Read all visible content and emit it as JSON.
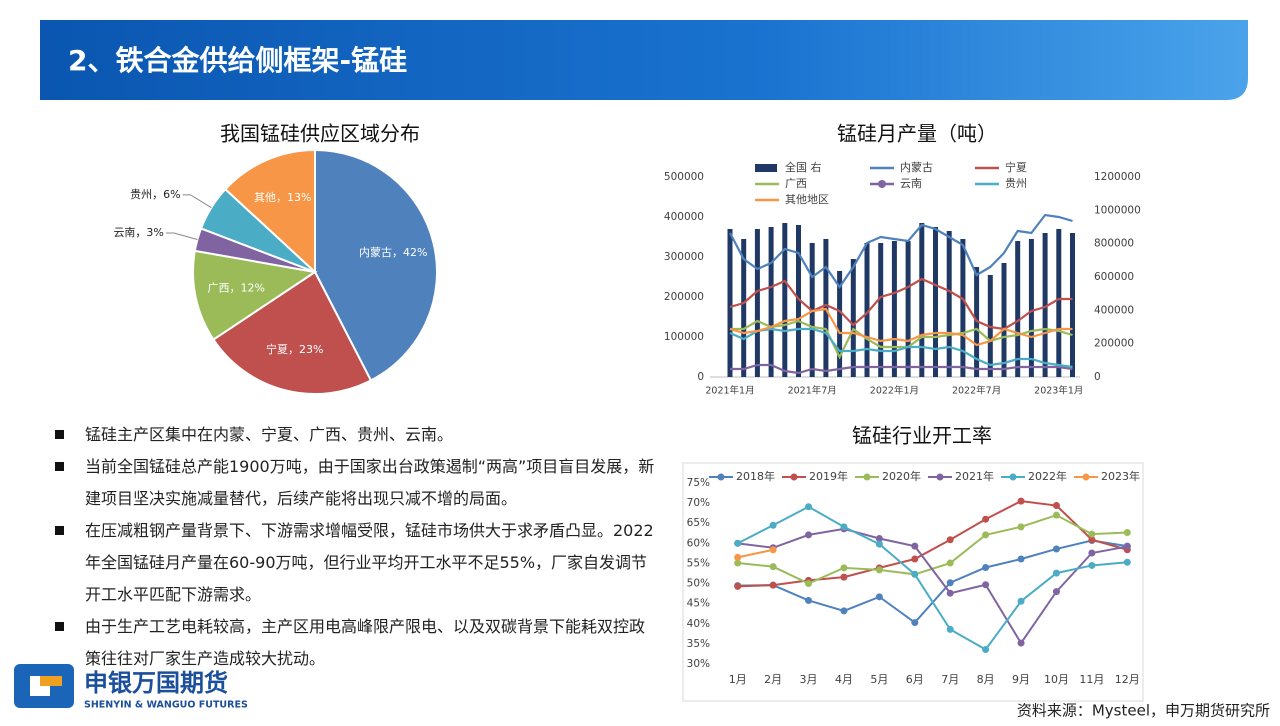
{
  "slide": {
    "title": "2、铁合金供给侧框架-锰硅",
    "bullets": [
      "锰硅主产区集中在内蒙、宁夏、广西、贵州、云南。",
      "当前全国锰硅总产能1900万吨，由于国家出台政策遏制“两高”项目盲目发展，新建项目坚决实施减量替代，后续产能将出现只减不增的局面。",
      "在压减粗钢产量背景下、下游需求增幅受限，锰硅市场供大于求矛盾凸显。2022年全国锰硅月产量在60-90万吨，但行业平均开工水平不足55%，厂家自发调节开工水平匹配下游需求。",
      "由于生产工艺电耗较高，主产区用电高峰限产限电、以及双碳背景下能耗双控政策往往对厂家生产造成较大扰动。"
    ],
    "logo_name": "申银万国期货",
    "logo_english": "SHENYIN & WANGUO FUTURES",
    "source": "资料来源：Mysteel，申万期货研究所"
  },
  "chart_data": [
    {
      "type": "pie",
      "title": "我国锰硅供应区域分布",
      "categories": [
        "内蒙古",
        "宁夏",
        "广西",
        "云南",
        "贵州",
        "其他"
      ],
      "values": [
        42,
        23,
        12,
        3,
        6,
        13
      ],
      "value_labels": [
        "内蒙古，42%",
        "宁夏，23%",
        "广西，12%",
        "云南，3%",
        "贵州，6%",
        "其他，13%"
      ],
      "colors": [
        "#4f81bd",
        "#c0504d",
        "#9bbb59",
        "#8064a2",
        "#4bacc6",
        "#f79646"
      ]
    },
    {
      "type": "bar-line",
      "title": "锰硅月产量（吨）",
      "categories": [
        "2021年1月",
        null,
        null,
        null,
        null,
        null,
        "2021年7月",
        null,
        null,
        null,
        null,
        null,
        "2022年1月",
        null,
        null,
        null,
        null,
        null,
        "2022年7月",
        null,
        null,
        null,
        null,
        null,
        "2023年1月",
        null
      ],
      "ylim": [
        0,
        500000
      ],
      "yticks": [
        0,
        100000,
        200000,
        300000,
        400000,
        500000
      ],
      "y2lim": [
        0,
        1200000
      ],
      "y2ticks": [
        0,
        200000,
        400000,
        600000,
        800000,
        1000000,
        1200000
      ],
      "grid": false,
      "series": [
        {
          "name": "全国 右",
          "type": "bar",
          "axis": "y2",
          "color": "#1f3864",
          "values": [
            888000,
            828000,
            888000,
            900000,
            924000,
            912000,
            804000,
            828000,
            636000,
            708000,
            804000,
            804000,
            816000,
            816000,
            924000,
            900000,
            876000,
            828000,
            660000,
            612000,
            684000,
            816000,
            828000,
            864000,
            888000,
            864000
          ]
        },
        {
          "name": "内蒙古",
          "type": "line",
          "color": "#4f81bd",
          "values": [
            360000,
            295000,
            270000,
            285000,
            320000,
            310000,
            250000,
            275000,
            225000,
            275000,
            335000,
            350000,
            345000,
            340000,
            380000,
            370000,
            350000,
            330000,
            255000,
            275000,
            310000,
            365000,
            360000,
            405000,
            400000,
            390000
          ]
        },
        {
          "name": "宁夏",
          "type": "line",
          "color": "#c0504d",
          "values": [
            175000,
            185000,
            215000,
            225000,
            240000,
            195000,
            165000,
            180000,
            165000,
            130000,
            160000,
            200000,
            210000,
            225000,
            245000,
            230000,
            215000,
            195000,
            140000,
            125000,
            120000,
            140000,
            165000,
            175000,
            195000,
            195000
          ]
        },
        {
          "name": "广西",
          "type": "line",
          "color": "#9bbb59",
          "values": [
            120000,
            120000,
            140000,
            125000,
            130000,
            140000,
            125000,
            120000,
            50000,
            120000,
            95000,
            75000,
            75000,
            75000,
            100000,
            100000,
            105000,
            110000,
            120000,
            90000,
            100000,
            105000,
            115000,
            120000,
            115000,
            105000
          ]
        },
        {
          "name": "云南",
          "type": "line",
          "color": "#8064a2",
          "values": [
            20000,
            20000,
            30000,
            30000,
            15000,
            10000,
            20000,
            15000,
            20000,
            25000,
            25000,
            25000,
            25000,
            25000,
            25000,
            25000,
            25000,
            25000,
            20000,
            20000,
            20000,
            25000,
            25000,
            25000,
            25000,
            20000
          ]
        },
        {
          "name": "贵州",
          "type": "line",
          "color": "#4bacc6",
          "values": [
            110000,
            95000,
            115000,
            120000,
            115000,
            120000,
            120000,
            110000,
            65000,
            65000,
            70000,
            65000,
            65000,
            75000,
            75000,
            70000,
            75000,
            65000,
            45000,
            30000,
            35000,
            45000,
            45000,
            35000,
            30000,
            25000
          ]
        },
        {
          "name": "其他地区",
          "type": "line",
          "color": "#f79646",
          "values": [
            120000,
            110000,
            115000,
            125000,
            140000,
            145000,
            165000,
            170000,
            110000,
            110000,
            100000,
            90000,
            95000,
            90000,
            105000,
            110000,
            110000,
            105000,
            80000,
            90000,
            120000,
            110000,
            100000,
            110000,
            120000,
            120000
          ]
        }
      ]
    },
    {
      "type": "line",
      "title": "锰硅行业开工率",
      "categories": [
        "1月",
        "2月",
        "3月",
        "4月",
        "5月",
        "6月",
        "7月",
        "8月",
        "9月",
        "10月",
        "11月",
        "12月"
      ],
      "ylim": [
        30,
        75
      ],
      "yticks": [
        {
          "value": 30,
          "label": "30%"
        },
        {
          "value": 35,
          "label": "35%"
        },
        {
          "value": 40,
          "label": "40%"
        },
        {
          "value": 45,
          "label": "45%"
        },
        {
          "value": 50,
          "label": "50%"
        },
        {
          "value": 55,
          "label": "55%"
        },
        {
          "value": 60,
          "label": "60%"
        },
        {
          "value": 65,
          "label": "65%"
        },
        {
          "value": 70,
          "label": "70%"
        },
        {
          "value": 75,
          "label": "75%"
        }
      ],
      "grid": false,
      "series": [
        {
          "name": "2018年",
          "color": "#4f81bd",
          "values": [
            49.5,
            49.6,
            45.8,
            43.2,
            46.7,
            40.3,
            50.2,
            54.0,
            56.1,
            58.6,
            60.7,
            59.3
          ]
        },
        {
          "name": "2019年",
          "color": "#c0504d",
          "values": [
            49.3,
            49.6,
            50.8,
            51.6,
            53.9,
            56.1,
            60.9,
            66.0,
            70.5,
            69.4,
            60.9,
            58.4
          ]
        },
        {
          "name": "2020年",
          "color": "#9bbb59",
          "values": [
            55.1,
            54.2,
            50.0,
            53.9,
            53.4,
            52.3,
            55.1,
            62.1,
            64.1,
            67.0,
            62.3,
            62.7
          ]
        },
        {
          "name": "2021年",
          "color": "#8064a2",
          "values": [
            60.0,
            58.9,
            62.1,
            63.6,
            61.2,
            59.3,
            47.6,
            49.7,
            35.2,
            48.0,
            57.6,
            59.2
          ]
        },
        {
          "name": "2022年",
          "color": "#4bacc6",
          "values": [
            60.0,
            64.5,
            69.1,
            64.1,
            59.8,
            52.3,
            38.6,
            33.6,
            45.6,
            52.6,
            54.5,
            55.3
          ]
        },
        {
          "name": "2023年",
          "color": "#f79646",
          "values": [
            56.5,
            58.4,
            null,
            null,
            null,
            null,
            null,
            null,
            null,
            null,
            null,
            null
          ]
        }
      ]
    }
  ]
}
